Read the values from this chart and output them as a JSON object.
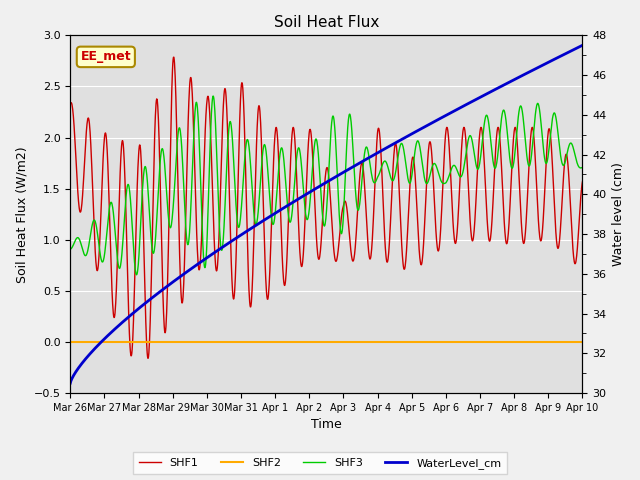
{
  "title": "Soil Heat Flux",
  "xlabel": "Time",
  "ylabel_left": "Soil Heat Flux (W/m2)",
  "ylabel_right": "Water level (cm)",
  "ylim_left": [
    -0.5,
    3.0
  ],
  "ylim_right": [
    30,
    48
  ],
  "background_color": "#f0f0f0",
  "plot_bg_color": "#e0e0e0",
  "legend_labels": [
    "SHF1",
    "SHF2",
    "SHF3",
    "WaterLevel_cm"
  ],
  "annotation_text": "EE_met",
  "annotation_bg": "#ffffcc",
  "annotation_border": "#aa8800",
  "x_tick_labels": [
    "Mar 26",
    "Mar 27",
    "Mar 28",
    "Mar 29",
    "Mar 30",
    "Mar 31",
    "Apr 1",
    "Apr 2",
    "Apr 3",
    "Apr 4",
    "Apr 5",
    "Apr 6",
    "Apr 7",
    "Apr 8",
    "Apr 9",
    "Apr 10"
  ],
  "shf1_color": "#cc0000",
  "shf2_color": "#ffaa00",
  "shf3_color": "#00cc00",
  "water_color": "#0000cc"
}
